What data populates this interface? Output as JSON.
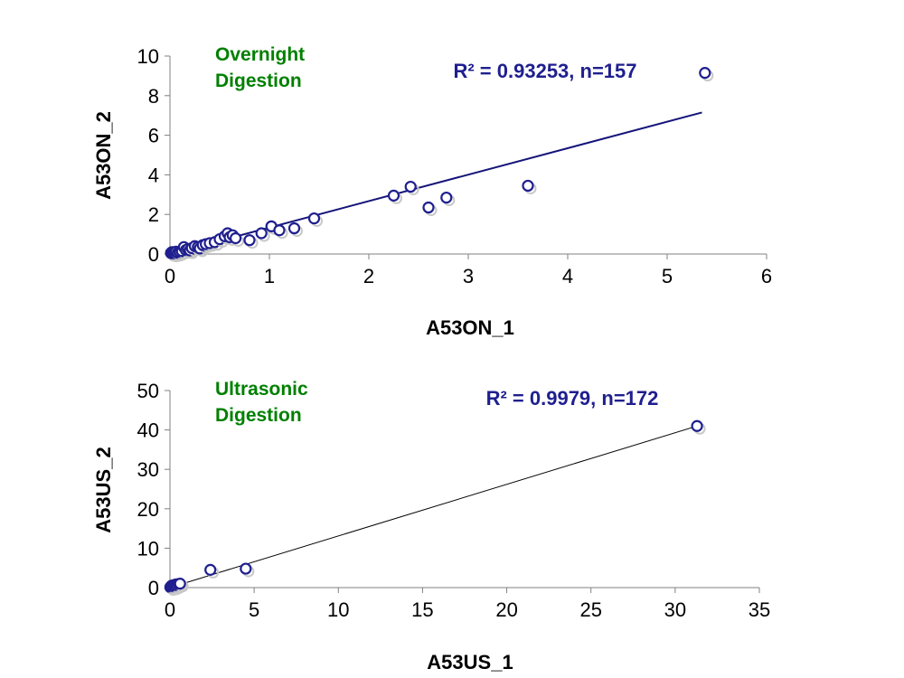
{
  "colors": {
    "series": "#1f1f8f",
    "fit_top": "#14147a",
    "fit_bottom": "#000000",
    "note": "#008000",
    "stat": "#1f1f8f",
    "axis": "#808080"
  },
  "chart_data": [
    {
      "type": "scatter",
      "title": "",
      "xlabel": "A53ON_1",
      "ylabel": "A53ON_2",
      "xlim": [
        0,
        6
      ],
      "ylim": [
        0,
        10
      ],
      "xticks": [
        "0",
        "1",
        "2",
        "3",
        "4",
        "5",
        "6"
      ],
      "yticks": [
        "0",
        "2",
        "4",
        "6",
        "8",
        "10"
      ],
      "grid": false,
      "legend": "none",
      "annotations": [
        "Overnight",
        "Digestion"
      ],
      "stat_label": "R² = 0.93253, n=157",
      "trendline": {
        "x": [
          0,
          5.35
        ],
        "y": [
          0,
          7.15
        ]
      },
      "x": [
        0.01,
        0.02,
        0.03,
        0.04,
        0.05,
        0.06,
        0.08,
        0.1,
        0.12,
        0.14,
        0.16,
        0.18,
        0.2,
        0.22,
        0.25,
        0.28,
        0.3,
        0.33,
        0.36,
        0.4,
        0.45,
        0.5,
        0.55,
        0.58,
        0.6,
        0.63,
        0.66,
        0.8,
        0.92,
        1.02,
        1.1,
        1.25,
        1.45,
        2.25,
        2.42,
        2.6,
        2.78,
        3.6,
        5.38
      ],
      "y": [
        0.05,
        0.1,
        0.02,
        0.08,
        0.03,
        0.12,
        0.06,
        0.1,
        0.15,
        0.35,
        0.2,
        0.25,
        0.18,
        0.3,
        0.4,
        0.35,
        0.28,
        0.45,
        0.5,
        0.55,
        0.6,
        0.75,
        0.9,
        1.05,
        0.85,
        0.95,
        0.8,
        0.7,
        1.05,
        1.4,
        1.2,
        1.3,
        1.8,
        2.95,
        3.4,
        2.35,
        2.85,
        3.45,
        9.15
      ]
    },
    {
      "type": "scatter",
      "title": "",
      "xlabel": "A53US_1",
      "ylabel": "A53US_2",
      "xlim": [
        0,
        35
      ],
      "ylim": [
        0,
        50
      ],
      "xticks": [
        "0",
        "5",
        "10",
        "15",
        "20",
        "25",
        "30",
        "35"
      ],
      "yticks": [
        "0",
        "10",
        "20",
        "30",
        "40",
        "50"
      ],
      "grid": false,
      "legend": "none",
      "annotations": [
        "Ultrasonic",
        "Digestion"
      ],
      "stat_label": "R² = 0.9979, n=172",
      "trendline": {
        "x": [
          0,
          31.3
        ],
        "y": [
          0,
          41.0
        ]
      },
      "x": [
        0.02,
        0.05,
        0.08,
        0.1,
        0.12,
        0.15,
        0.2,
        0.25,
        0.3,
        0.35,
        0.4,
        0.5,
        0.6,
        2.4,
        4.5,
        31.3
      ],
      "y": [
        0.1,
        0.2,
        0.3,
        0.5,
        0.2,
        0.4,
        0.6,
        0.3,
        0.5,
        0.8,
        0.6,
        0.9,
        1.0,
        4.5,
        4.8,
        41.0
      ]
    }
  ]
}
